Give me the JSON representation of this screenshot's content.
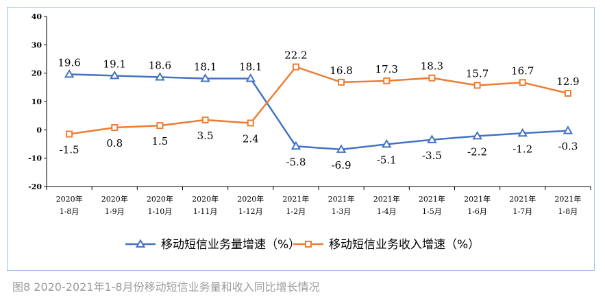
{
  "chart_data": {
    "type": "line",
    "categories": [
      [
        "2020年",
        "1-8月"
      ],
      [
        "2020年",
        "1-9月"
      ],
      [
        "2020年",
        "1-10月"
      ],
      [
        "2020年",
        "1-11月"
      ],
      [
        "2020年",
        "1-12月"
      ],
      [
        "2021年",
        "1-2月"
      ],
      [
        "2021年",
        "1-3月"
      ],
      [
        "2021年",
        "1-4月"
      ],
      [
        "2021年",
        "1-5月"
      ],
      [
        "2021年",
        "1-6月"
      ],
      [
        "2021年",
        "1-7月"
      ],
      [
        "2021年",
        "1-8月"
      ]
    ],
    "series": [
      {
        "name": "移动短信业务量增速（%）",
        "color": "#4472c4",
        "marker": "triangle",
        "values": [
          19.6,
          19.1,
          18.6,
          18.1,
          18.1,
          -5.8,
          -6.9,
          -5.1,
          -3.5,
          -2.2,
          -1.2,
          -0.3
        ],
        "labels": [
          "19.6",
          "19.1",
          "18.6",
          "18.1",
          "18.1",
          "-5.8",
          "-6.9",
          "-5.1",
          "-3.5",
          "-2.2",
          "-1.2",
          "-0.3"
        ]
      },
      {
        "name": "移动短信业务收入增速（%）",
        "color": "#ed7d31",
        "marker": "square",
        "values": [
          -1.5,
          0.8,
          1.5,
          3.5,
          2.4,
          22.2,
          16.8,
          17.3,
          18.3,
          15.7,
          16.7,
          12.9
        ],
        "labels": [
          "-1.5",
          "0.8",
          "1.5",
          "3.5",
          "2.4",
          "22.2",
          "16.8",
          "17.3",
          "18.3",
          "15.7",
          "16.7",
          "12.9"
        ]
      }
    ],
    "ylim": [
      -20,
      40
    ],
    "yticks": [
      "40",
      "30",
      "20",
      "10",
      "0",
      "-10",
      "-20"
    ],
    "grid": false,
    "legend": "bottom",
    "title": "",
    "xlabel": "",
    "ylabel": ""
  },
  "caption": "图8 2020-2021年1-8月份移动短信业务量和收入同比增长情况"
}
